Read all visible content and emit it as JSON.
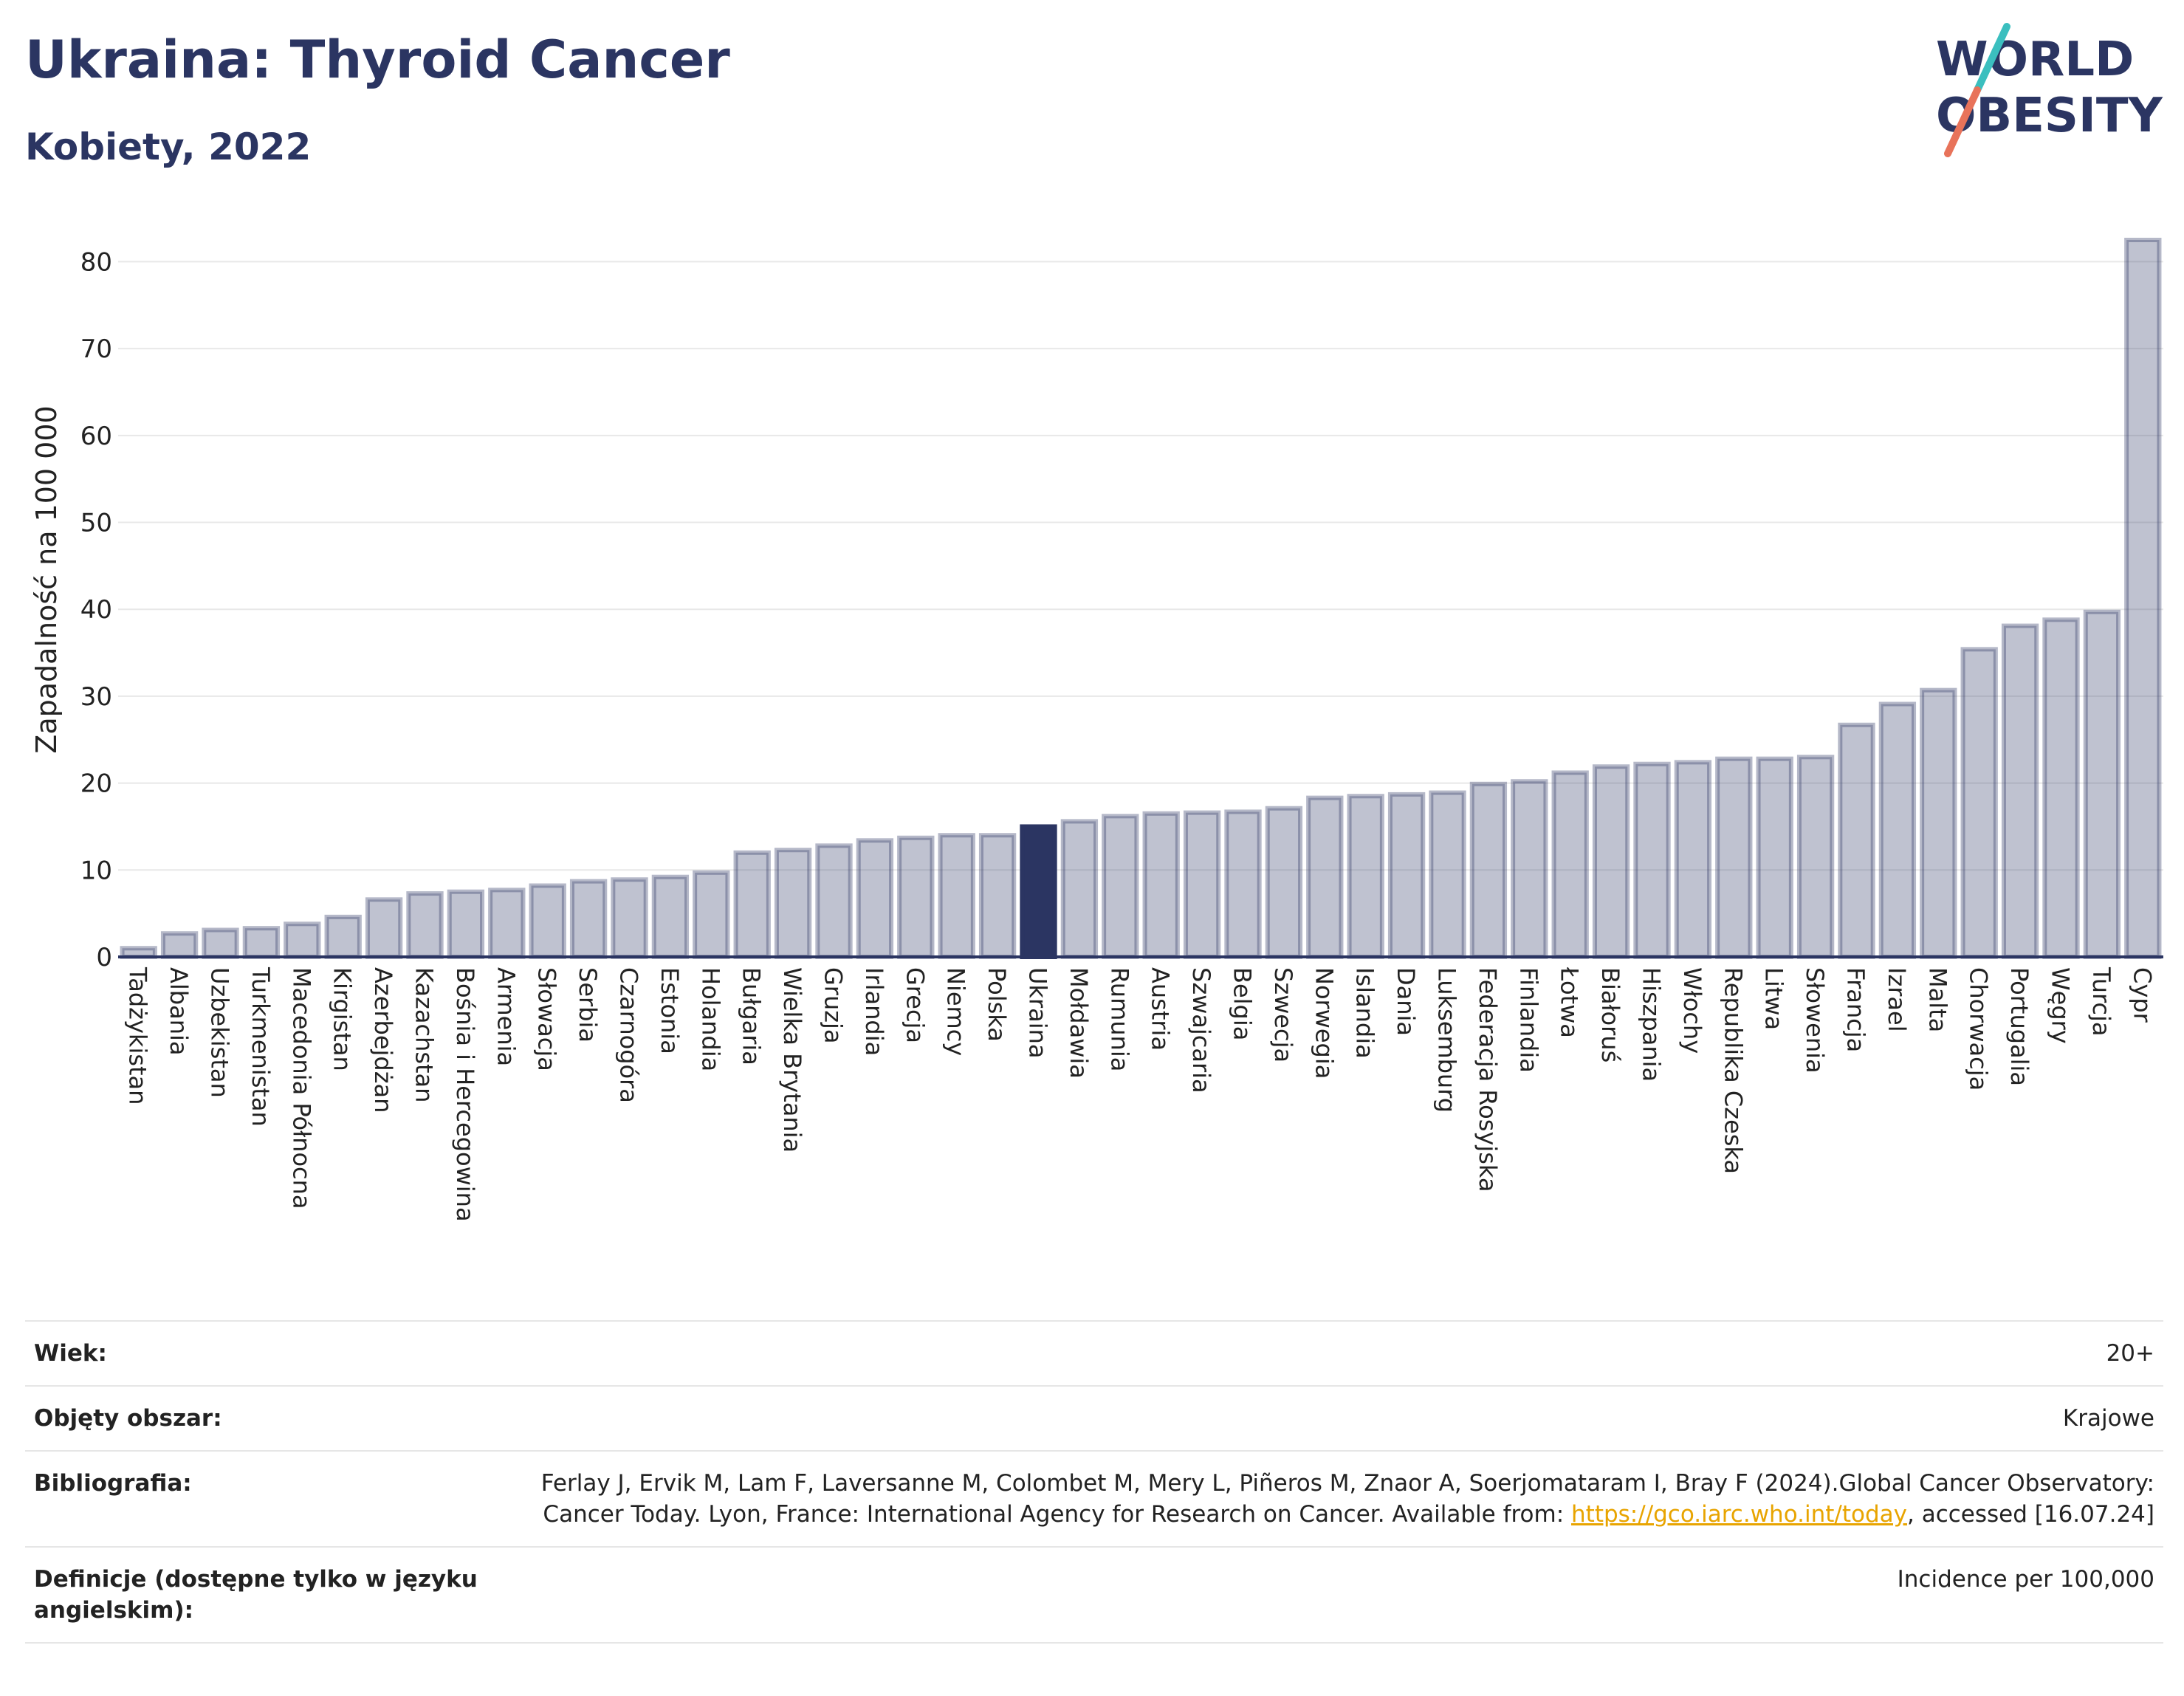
{
  "header": {
    "title": "Ukraina: Thyroid Cancer",
    "subtitle": "Kobiety, 2022"
  },
  "logo": {
    "line1": "WORLD",
    "line2": "OBESITY",
    "colors": {
      "text": "#2b3562",
      "slash_top": "#3bbfbf",
      "slash_bottom": "#e8735a"
    }
  },
  "chart_data": {
    "type": "bar",
    "title": "",
    "xlabel": "",
    "ylabel": "Zapadalność na 100 000",
    "ylim": [
      0,
      82.5
    ],
    "yticks": [
      0,
      10,
      20,
      30,
      40,
      50,
      60,
      70,
      80
    ],
    "grid": true,
    "highlight": "Ukraina",
    "colors": {
      "bar": "#2b3562",
      "bar_fill_opacity": 0.3,
      "highlight": "#2b3562"
    },
    "categories": [
      "Tadżykistan",
      "Albania",
      "Uzbekistan",
      "Turkmenistan",
      "Macedonia Północna",
      "Kirgistan",
      "Azerbejdżan",
      "Kazachstan",
      "Bośnia i Hercegowina",
      "Armenia",
      "Słowacja",
      "Serbia",
      "Czarnogóra",
      "Estonia",
      "Holandia",
      "Bułgaria",
      "Wielka Brytania",
      "Gruzja",
      "Irlandia",
      "Grecja",
      "Niemcy",
      "Polska",
      "Ukraina",
      "Mołdawia",
      "Rumunia",
      "Austria",
      "Szwajcaria",
      "Belgia",
      "Szwecja",
      "Norwegia",
      "Islandia",
      "Dania",
      "Luksemburg",
      "Federacja Rosyjska",
      "Finlandia",
      "Łotwa",
      "Białoruś",
      "Hiszpania",
      "Włochy",
      "Republika Czeska",
      "Litwa",
      "Słowenia",
      "Francja",
      "Izrael",
      "Malta",
      "Chorwacja",
      "Portugalia",
      "Węgry",
      "Turcja",
      "Cypr"
    ],
    "values": [
      1.0,
      2.7,
      3.1,
      3.3,
      3.8,
      4.6,
      6.6,
      7.3,
      7.5,
      7.7,
      8.2,
      8.7,
      8.9,
      9.2,
      9.7,
      12.0,
      12.3,
      12.8,
      13.4,
      13.7,
      14.0,
      14.0,
      15.0,
      15.6,
      16.2,
      16.5,
      16.6,
      16.7,
      17.1,
      18.3,
      18.5,
      18.7,
      18.9,
      19.9,
      20.2,
      21.2,
      21.9,
      22.2,
      22.4,
      22.8,
      22.8,
      23.0,
      26.7,
      29.1,
      30.7,
      35.4,
      38.1,
      38.8,
      39.7,
      82.5
    ]
  },
  "meta": {
    "rows": [
      {
        "key": "Wiek:",
        "value": "20+"
      },
      {
        "key": "Objęty obszar:",
        "value": "Krajowe"
      },
      {
        "key": "Bibliografia:",
        "value_before": "Ferlay J, Ervik M, Lam F, Laversanne M, Colombet M, Mery L, Piñeros M, Znaor A, Soerjomataram I, Bray F (2024).Global Cancer Observatory: Cancer Today. Lyon, France: International Agency for Research on Cancer. Available from: ",
        "link": "https://gco.iarc.who.int/today",
        "value_after": ", accessed [16.07.24]"
      },
      {
        "key": "Definicje (dostępne tylko w języku angielskim):",
        "value": "Incidence per 100,000"
      }
    ]
  }
}
